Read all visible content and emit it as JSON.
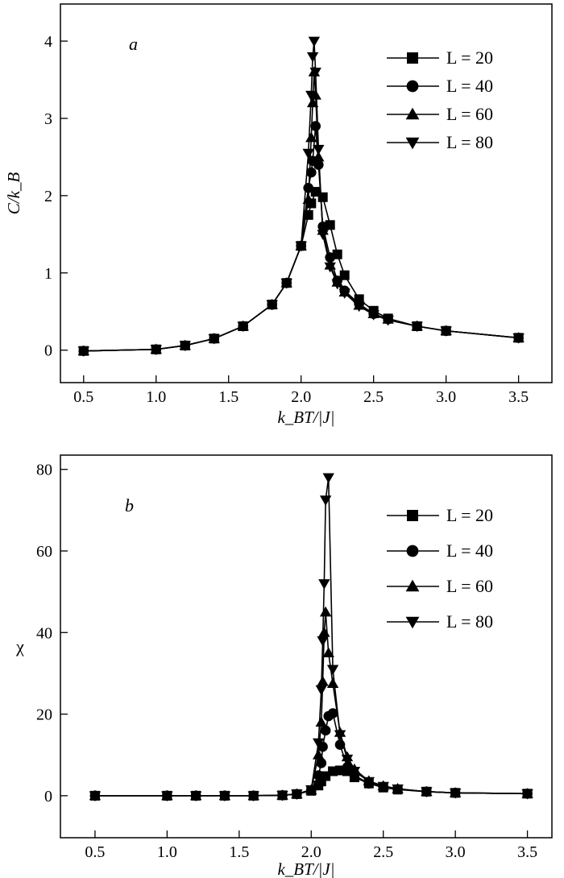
{
  "chart_data": [
    {
      "type": "line",
      "panel_label": "a",
      "xlabel": "k_BT/|J|",
      "ylabel": "C/k_B",
      "xlim": [
        0.34,
        3.73
      ],
      "ylim": [
        -0.42,
        4.48
      ],
      "xticks": [
        0.5,
        1.0,
        1.5,
        2.0,
        2.5,
        3.0,
        3.5
      ],
      "xtick_labels": [
        "0.5",
        "1.0",
        "1.5",
        "2.0",
        "2.5",
        "3.0",
        "3.5"
      ],
      "yticks": [
        0,
        1,
        2,
        3,
        4
      ],
      "ytick_labels": [
        "0",
        "1",
        "2",
        "3",
        "4"
      ],
      "legend_position": "top-right",
      "grid": false,
      "series": [
        {
          "name": "L = 20",
          "marker": "square",
          "x": [
            0.5,
            1.0,
            1.2,
            1.4,
            1.6,
            1.8,
            1.9,
            2.0,
            2.05,
            2.07,
            2.1,
            2.15,
            2.2,
            2.25,
            2.3,
            2.4,
            2.5,
            2.6,
            2.8,
            3.0,
            3.5
          ],
          "y": [
            -0.01,
            0.01,
            0.06,
            0.15,
            0.31,
            0.59,
            0.87,
            1.35,
            1.75,
            1.9,
            2.05,
            1.98,
            1.62,
            1.24,
            0.97,
            0.66,
            0.51,
            0.41,
            0.31,
            0.25,
            0.16
          ]
        },
        {
          "name": "L = 40",
          "marker": "circle",
          "x": [
            0.5,
            1.0,
            1.2,
            1.4,
            1.6,
            1.8,
            1.9,
            2.0,
            2.05,
            2.07,
            2.08,
            2.1,
            2.12,
            2.15,
            2.2,
            2.25,
            2.3,
            2.4,
            2.5,
            2.6,
            2.8,
            3.0,
            3.5
          ],
          "y": [
            -0.01,
            0.01,
            0.06,
            0.15,
            0.31,
            0.59,
            0.87,
            1.35,
            2.1,
            2.3,
            2.45,
            2.9,
            2.4,
            1.6,
            1.2,
            0.9,
            0.77,
            0.6,
            0.47,
            0.4,
            0.31,
            0.25,
            0.16
          ]
        },
        {
          "name": "L = 60",
          "marker": "triangle-up",
          "x": [
            0.5,
            1.0,
            1.2,
            1.4,
            1.6,
            1.8,
            1.9,
            2.0,
            2.05,
            2.07,
            2.08,
            2.09,
            2.1,
            2.12,
            2.15,
            2.2,
            2.25,
            2.3,
            2.4,
            2.5,
            2.6,
            2.8,
            3.0,
            3.5
          ],
          "y": [
            -0.01,
            0.01,
            0.06,
            0.15,
            0.31,
            0.59,
            0.87,
            1.35,
            1.95,
            2.75,
            3.2,
            3.6,
            3.3,
            2.5,
            1.55,
            1.1,
            0.88,
            0.75,
            0.58,
            0.47,
            0.4,
            0.31,
            0.25,
            0.16
          ]
        },
        {
          "name": "L = 80",
          "marker": "triangle-down",
          "x": [
            0.5,
            1.0,
            1.2,
            1.4,
            1.6,
            1.8,
            1.9,
            2.0,
            2.05,
            2.07,
            2.08,
            2.09,
            2.1,
            2.12,
            2.15,
            2.2,
            2.25,
            2.3,
            2.4,
            2.5,
            2.6,
            2.8,
            3.0,
            3.5
          ],
          "y": [
            -0.01,
            0.01,
            0.06,
            0.15,
            0.31,
            0.59,
            0.87,
            1.35,
            2.55,
            3.3,
            3.8,
            4.0,
            3.6,
            2.6,
            1.5,
            1.08,
            0.86,
            0.74,
            0.57,
            0.46,
            0.39,
            0.31,
            0.25,
            0.16
          ]
        }
      ]
    },
    {
      "type": "line",
      "panel_label": "b",
      "xlabel": "k_BT/|J|",
      "ylabel": "χ",
      "xlim": [
        0.26,
        3.67
      ],
      "ylim": [
        -10.3,
        83.5
      ],
      "xticks": [
        0.5,
        1.0,
        1.5,
        2.0,
        2.5,
        3.0,
        3.5
      ],
      "xtick_labels": [
        "0.5",
        "1.0",
        "1.5",
        "2.0",
        "2.5",
        "3.0",
        "3.5"
      ],
      "yticks": [
        0,
        20,
        40,
        60,
        80
      ],
      "ytick_labels": [
        "0",
        "20",
        "40",
        "60",
        "80"
      ],
      "legend_position": "right",
      "grid": false,
      "series": [
        {
          "name": "L = 20",
          "marker": "square",
          "x": [
            0.5,
            1.0,
            1.2,
            1.4,
            1.6,
            1.8,
            1.9,
            2.0,
            2.05,
            2.07,
            2.1,
            2.15,
            2.2,
            2.25,
            2.3,
            2.4,
            2.5,
            2.6,
            2.8,
            3.0,
            3.5
          ],
          "y": [
            0,
            0,
            0,
            0,
            0,
            0.1,
            0.4,
            1.2,
            2.5,
            3.5,
            4.8,
            6.0,
            6.2,
            6.0,
            4.5,
            3.0,
            2.0,
            1.5,
            1.0,
            0.7,
            0.5
          ]
        },
        {
          "name": "L = 40",
          "marker": "circle",
          "x": [
            0.5,
            1.0,
            1.2,
            1.4,
            1.6,
            1.8,
            1.9,
            2.0,
            2.05,
            2.07,
            2.08,
            2.1,
            2.12,
            2.15,
            2.2,
            2.25,
            2.3,
            2.4,
            2.5,
            2.6,
            2.8,
            3.0,
            3.5
          ],
          "y": [
            0,
            0,
            0,
            0,
            0,
            0.1,
            0.4,
            1.3,
            5,
            8,
            12,
            16,
            19.5,
            20.2,
            12.5,
            7,
            5,
            3,
            2.2,
            1.6,
            1.0,
            0.7,
            0.5
          ]
        },
        {
          "name": "L = 60",
          "marker": "triangle-up",
          "x": [
            0.5,
            1.0,
            1.2,
            1.4,
            1.6,
            1.8,
            1.9,
            2.0,
            2.05,
            2.07,
            2.08,
            2.09,
            2.1,
            2.12,
            2.15,
            2.2,
            2.25,
            2.3,
            2.4,
            2.5,
            2.6,
            2.8,
            3.0,
            3.5
          ],
          "y": [
            0,
            0,
            0,
            0,
            0,
            0.1,
            0.4,
            1.4,
            10,
            18,
            28,
            40,
            45,
            35,
            27.5,
            15.5,
            9.5,
            6.5,
            3.6,
            2.4,
            1.7,
            1.0,
            0.7,
            0.5
          ]
        },
        {
          "name": "L = 80",
          "marker": "triangle-down",
          "x": [
            0.5,
            1.0,
            1.2,
            1.4,
            1.6,
            1.8,
            1.9,
            2.0,
            2.05,
            2.07,
            2.08,
            2.09,
            2.1,
            2.12,
            2.15,
            2.2,
            2.25,
            2.3,
            2.4,
            2.5,
            2.6,
            2.8,
            3.0,
            3.5
          ],
          "y": [
            0,
            0,
            0,
            0,
            0,
            0.1,
            0.4,
            1.5,
            13,
            26,
            38,
            52,
            72.5,
            78,
            31,
            15,
            9,
            6,
            3.5,
            2.3,
            1.7,
            1.0,
            0.7,
            0.5
          ]
        }
      ]
    }
  ]
}
